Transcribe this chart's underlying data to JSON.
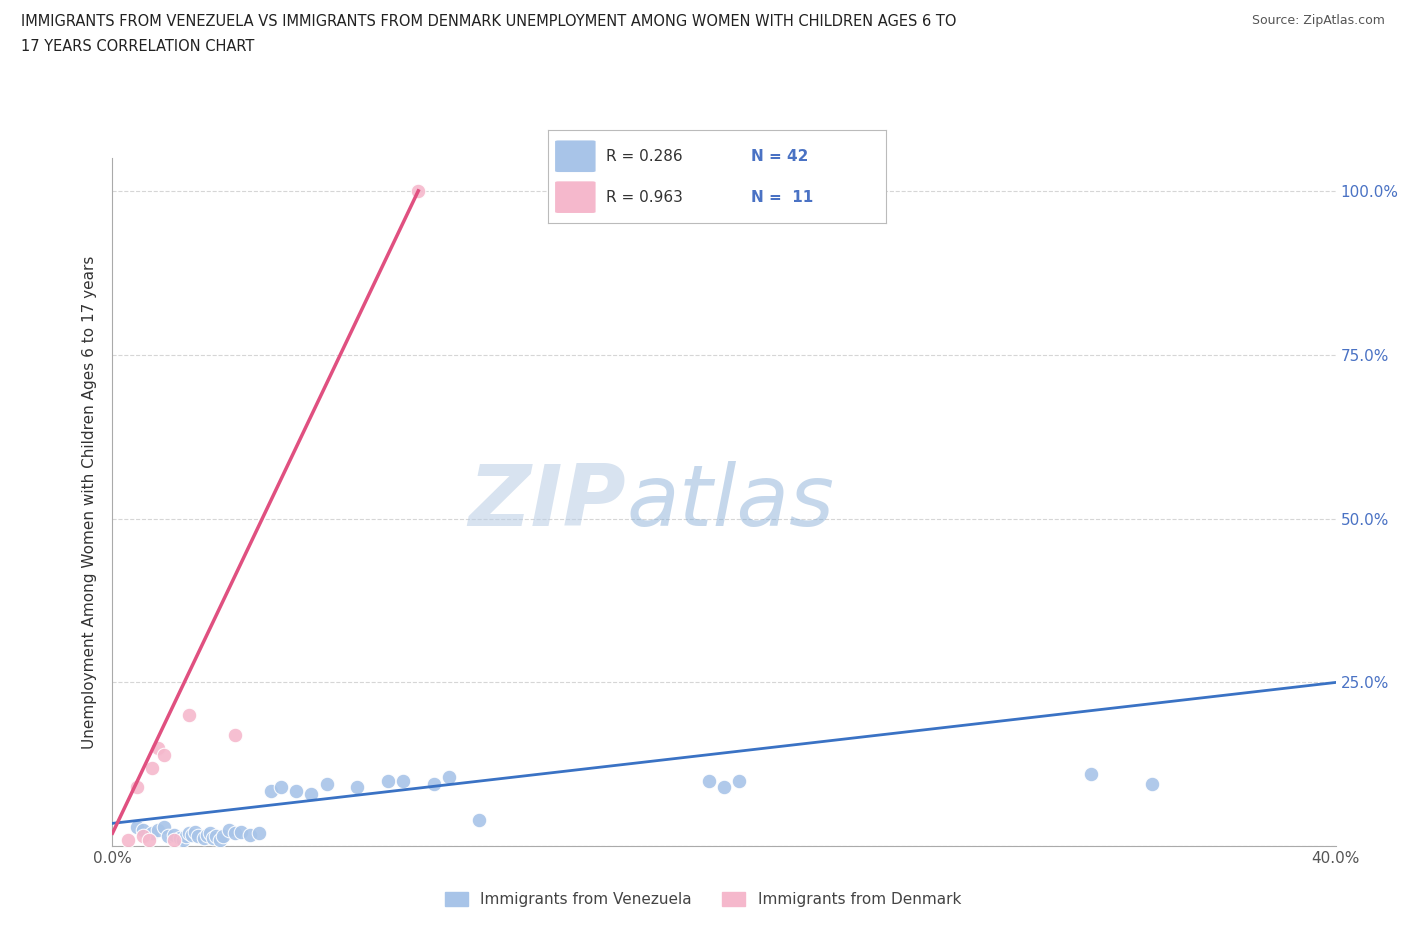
{
  "title_line1": "IMMIGRANTS FROM VENEZUELA VS IMMIGRANTS FROM DENMARK UNEMPLOYMENT AMONG WOMEN WITH CHILDREN AGES 6 TO",
  "title_line2": "17 YEARS CORRELATION CHART",
  "source": "Source: ZipAtlas.com",
  "ylabel": "Unemployment Among Women with Children Ages 6 to 17 years",
  "xlim": [
    0.0,
    0.4
  ],
  "ylim": [
    0.0,
    1.05
  ],
  "xticks": [
    0.0,
    0.1,
    0.2,
    0.3,
    0.4
  ],
  "yticks": [
    0.0,
    0.25,
    0.5,
    0.75,
    1.0
  ],
  "watermark_zip": "ZIP",
  "watermark_atlas": "atlas",
  "legend1_R": "0.286",
  "legend1_N": "42",
  "legend2_R": "0.963",
  "legend2_N": "11",
  "blue_color": "#a8c4e8",
  "pink_color": "#f5b8cc",
  "blue_line_color": "#3a72c4",
  "pink_line_color": "#e05080",
  "blue_scatter": [
    [
      0.008,
      0.03
    ],
    [
      0.01,
      0.025
    ],
    [
      0.013,
      0.02
    ],
    [
      0.015,
      0.025
    ],
    [
      0.017,
      0.03
    ],
    [
      0.018,
      0.015
    ],
    [
      0.02,
      0.018
    ],
    [
      0.022,
      0.012
    ],
    [
      0.023,
      0.01
    ],
    [
      0.024,
      0.015
    ],
    [
      0.025,
      0.02
    ],
    [
      0.026,
      0.018
    ],
    [
      0.027,
      0.022
    ],
    [
      0.028,
      0.015
    ],
    [
      0.03,
      0.012
    ],
    [
      0.031,
      0.018
    ],
    [
      0.032,
      0.02
    ],
    [
      0.033,
      0.012
    ],
    [
      0.034,
      0.015
    ],
    [
      0.035,
      0.01
    ],
    [
      0.036,
      0.015
    ],
    [
      0.038,
      0.025
    ],
    [
      0.04,
      0.02
    ],
    [
      0.042,
      0.022
    ],
    [
      0.045,
      0.018
    ],
    [
      0.048,
      0.02
    ],
    [
      0.052,
      0.085
    ],
    [
      0.055,
      0.09
    ],
    [
      0.06,
      0.085
    ],
    [
      0.065,
      0.08
    ],
    [
      0.07,
      0.095
    ],
    [
      0.08,
      0.09
    ],
    [
      0.09,
      0.1
    ],
    [
      0.095,
      0.1
    ],
    [
      0.105,
      0.095
    ],
    [
      0.11,
      0.105
    ],
    [
      0.12,
      0.04
    ],
    [
      0.195,
      0.1
    ],
    [
      0.2,
      0.09
    ],
    [
      0.205,
      0.1
    ],
    [
      0.32,
      0.11
    ],
    [
      0.34,
      0.095
    ]
  ],
  "pink_scatter": [
    [
      0.005,
      0.01
    ],
    [
      0.008,
      0.09
    ],
    [
      0.01,
      0.015
    ],
    [
      0.012,
      0.01
    ],
    [
      0.013,
      0.12
    ],
    [
      0.015,
      0.15
    ],
    [
      0.017,
      0.14
    ],
    [
      0.02,
      0.01
    ],
    [
      0.025,
      0.2
    ],
    [
      0.04,
      0.17
    ],
    [
      0.1,
      1.0
    ]
  ],
  "blue_trend_x": [
    0.0,
    0.4
  ],
  "blue_trend_y": [
    0.035,
    0.25
  ],
  "pink_trend_x": [
    0.0,
    0.1
  ],
  "pink_trend_y": [
    0.02,
    1.0
  ]
}
